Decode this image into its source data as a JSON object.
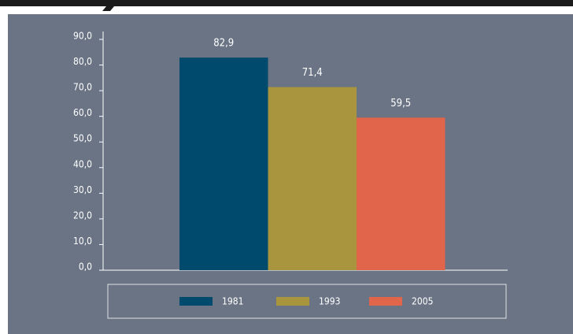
{
  "chart_data": {
    "type": "bar",
    "categories": [
      null
    ],
    "series": [
      {
        "name": "1981",
        "color": "#004a6e",
        "values": [
          82.9
        ],
        "value_labels": [
          "82,9"
        ]
      },
      {
        "name": "1993",
        "color": "#a8953e",
        "values": [
          71.4
        ],
        "value_labels": [
          "71,4"
        ]
      },
      {
        "name": "2005",
        "color": "#e0654a",
        "values": [
          59.5
        ],
        "value_labels": [
          "59,5"
        ]
      }
    ],
    "ylim": [
      0,
      90
    ],
    "yticks": [
      {
        "value": 0,
        "label": "0,0"
      },
      {
        "value": 10,
        "label": "10,0"
      },
      {
        "value": 20,
        "label": "20,0"
      },
      {
        "value": 30,
        "label": "30,0"
      },
      {
        "value": 40,
        "label": "40,0"
      },
      {
        "value": 50,
        "label": "50,0"
      },
      {
        "value": 60,
        "label": "60,0"
      },
      {
        "value": 70,
        "label": "70,0"
      },
      {
        "value": 80,
        "label": "80,0"
      },
      {
        "value": 90,
        "label": "90,0"
      }
    ],
    "legend": "bottom"
  }
}
